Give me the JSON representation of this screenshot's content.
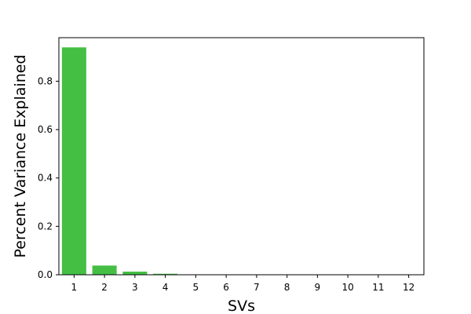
{
  "chart_data": {
    "type": "bar",
    "title": "",
    "xlabel": "SVs",
    "ylabel": "Percent Variance Explained",
    "categories": [
      "1",
      "2",
      "3",
      "4",
      "5",
      "6",
      "7",
      "8",
      "9",
      "10",
      "11",
      "12"
    ],
    "values": [
      0.94,
      0.038,
      0.013,
      0.004,
      0.0015,
      0.001,
      0.0007,
      0.0005,
      0.0004,
      0.0003,
      0.0002,
      0.0001
    ],
    "ylim": [
      0,
      0.98
    ],
    "yticks": [
      0.0,
      0.2,
      0.4,
      0.6,
      0.8
    ],
    "ytick_labels": [
      "0.0",
      "0.2",
      "0.4",
      "0.6",
      "0.8"
    ],
    "bar_color": "#44bf44",
    "grid": false,
    "legend": "none"
  }
}
